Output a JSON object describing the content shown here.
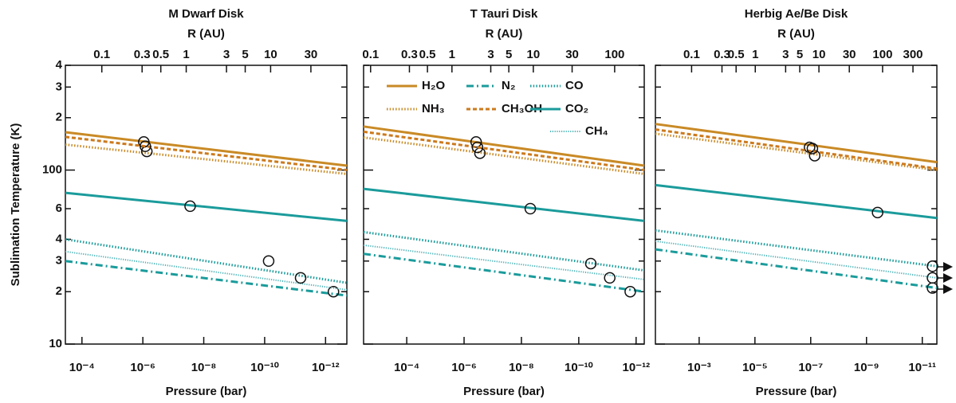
{
  "chart_data": [
    {
      "type": "line",
      "title": "M Dwarf Disk",
      "x2label": "R (AU)",
      "xlabel": "Pressure (bar)",
      "ylabel": "Sublimation Temperature (K)",
      "xlog": true,
      "ylog": true,
      "xlim": [
        0.00035,
        2e-13
      ],
      "xticks": [
        {
          "value": 0.0001,
          "label": "10⁻⁴"
        },
        {
          "value": 1e-06,
          "label": "10⁻⁶"
        },
        {
          "value": 1e-08,
          "label": "10⁻⁸"
        },
        {
          "value": 1e-10,
          "label": "10⁻¹⁰"
        },
        {
          "value": 1e-12,
          "label": "10⁻¹²"
        }
      ],
      "x2lim": [
        0.037,
        80
      ],
      "x2ticks": [
        0.1,
        0.3,
        0.5,
        1,
        3,
        5,
        10,
        30
      ],
      "ylim": [
        10,
        400
      ],
      "yticks": [
        10,
        {
          "value": 20,
          "label": "2"
        },
        {
          "value": 30,
          "label": "3"
        },
        {
          "value": 40,
          "label": "4"
        },
        {
          "value": 60,
          "label": "6"
        },
        100,
        {
          "value": 200,
          "label": "2"
        },
        {
          "value": 300,
          "label": "3"
        },
        {
          "value": 400,
          "label": "4"
        }
      ],
      "x": [
        0.00035,
        2e-13
      ],
      "series": [
        {
          "color": "#c98a26",
          "style": "solid",
          "values": [
            165,
            106
          ],
          "snowline": [
            9.3e-07,
            145
          ]
        },
        {
          "color": "#1b9b9b",
          "style": "dashdot",
          "values": [
            30,
            19
          ],
          "snowline": [
            5.5e-13,
            20
          ]
        },
        {
          "color": "#1b9b9b",
          "style": "dotted",
          "values": [
            40,
            22.5
          ],
          "snowline": [
            7.4e-11,
            30
          ]
        },
        {
          "color": "#c98a26",
          "style": "dotted",
          "values": [
            140,
            95
          ],
          "snowline": [
            7.4e-07,
            128
          ]
        },
        {
          "color": "#cc7a1e",
          "style": "dashed",
          "values": [
            155,
            100
          ],
          "snowline": [
            8.3e-07,
            137
          ]
        },
        {
          "color": "#1b9b9b",
          "style": "solid",
          "values": [
            74,
            51
          ],
          "snowline": [
            2.8e-08,
            62
          ]
        },
        {
          "color": "#4fb3b8",
          "style": "fine",
          "values": [
            34,
            20.5
          ],
          "snowline": [
            6.6e-12,
            24
          ]
        }
      ]
    },
    {
      "type": "line",
      "title": "T Tauri Disk",
      "x2label": "R (AU)",
      "xlabel": "Pressure (bar)",
      "xlog": true,
      "ylog": true,
      "xlim": [
        0.0032,
        5.2e-13
      ],
      "xticks": [
        {
          "value": 0.0001,
          "label": "10⁻⁴"
        },
        {
          "value": 1e-06,
          "label": "10⁻⁶"
        },
        {
          "value": 1e-08,
          "label": "10⁻⁸"
        },
        {
          "value": 1e-10,
          "label": "10⁻¹⁰"
        },
        {
          "value": 1e-12,
          "label": "10⁻¹²"
        }
      ],
      "x2lim": [
        0.082,
        231
      ],
      "x2ticks": [
        0.1,
        0.3,
        0.5,
        1,
        3,
        5,
        10,
        30,
        100
      ],
      "ylim": [
        10,
        400
      ],
      "x": [
        0.0032,
        5.2e-13
      ],
      "series": [
        {
          "name": "H₂O",
          "color": "#c98a26",
          "style": "solid",
          "values": [
            178,
            106
          ],
          "snowline": [
            3.8e-07,
            145
          ]
        },
        {
          "name": "N₂",
          "color": "#1b9b9b",
          "style": "dashdot",
          "values": [
            33,
            20
          ],
          "snowline": [
            1.6e-12,
            20
          ]
        },
        {
          "name": "CO",
          "color": "#1b9b9b",
          "style": "dotted",
          "values": [
            44,
            26.5
          ],
          "snowline": [
            3.8e-11,
            29
          ]
        },
        {
          "name": "NH₃",
          "color": "#c98a26",
          "style": "dotted",
          "values": [
            154,
            95
          ],
          "snowline": [
            2.8e-07,
            125
          ]
        },
        {
          "name": "CH₃OH",
          "color": "#cc7a1e",
          "style": "dashed",
          "values": [
            166,
            100
          ],
          "snowline": [
            3.4e-07,
            135
          ]
        },
        {
          "name": "CO₂",
          "color": "#1b9b9b",
          "style": "solid",
          "values": [
            78,
            51
          ],
          "snowline": [
            4.9e-09,
            60
          ]
        },
        {
          "name": "CH₄",
          "color": "#4fb3b8",
          "style": "fine",
          "values": [
            37,
            23.5
          ],
          "snowline": [
            8.3e-12,
            24
          ]
        }
      ]
    },
    {
      "type": "line",
      "title": "Herbig Ae/Be Disk",
      "x2label": "R (AU)",
      "xlabel": "Pressure (bar)",
      "xlog": true,
      "ylog": true,
      "xlim": [
        0.037,
        3e-12
      ],
      "xticks": [
        {
          "value": 0.001,
          "label": "10⁻³"
        },
        {
          "value": 1e-05,
          "label": "10⁻⁵"
        },
        {
          "value": 1e-07,
          "label": "10⁻⁷"
        },
        {
          "value": 1e-09,
          "label": "10⁻⁹"
        },
        {
          "value": 1e-11,
          "label": "10⁻¹¹"
        }
      ],
      "x2lim": [
        0.027,
        712
      ],
      "x2ticks": [
        0.1,
        0.3,
        0.5,
        1,
        3,
        5,
        10,
        30,
        100,
        300
      ],
      "ylim": [
        10,
        400
      ],
      "x": [
        0.037,
        3e-12
      ],
      "series": [
        {
          "color": "#c98a26",
          "style": "solid",
          "values": [
            184,
            111
          ],
          "snowline": [
            1.1e-07,
            135
          ]
        },
        {
          "color": "#1b9b9b",
          "style": "dashdot",
          "values": [
            35,
            21
          ],
          "snowline": [
            4.3e-12,
            21
          ]
        },
        {
          "color": "#1b9b9b",
          "style": "dotted",
          "values": [
            45,
            28
          ],
          "snowline": [
            4.3e-12,
            28
          ]
        },
        {
          "color": "#c98a26",
          "style": "dotted",
          "values": [
            162,
            100
          ],
          "snowline": [
            7.2e-08,
            121
          ]
        },
        {
          "color": "#cc7a1e",
          "style": "dashed",
          "values": [
            171,
            102
          ],
          "snowline": [
            8.7e-08,
            133
          ]
        },
        {
          "color": "#1b9b9b",
          "style": "solid",
          "values": [
            82,
            53
          ],
          "snowline": [
            4e-10,
            57
          ]
        },
        {
          "color": "#4fb3b8",
          "style": "fine",
          "values": [
            39,
            24
          ],
          "snowline": [
            4.3e-12,
            24
          ]
        }
      ]
    }
  ]
}
